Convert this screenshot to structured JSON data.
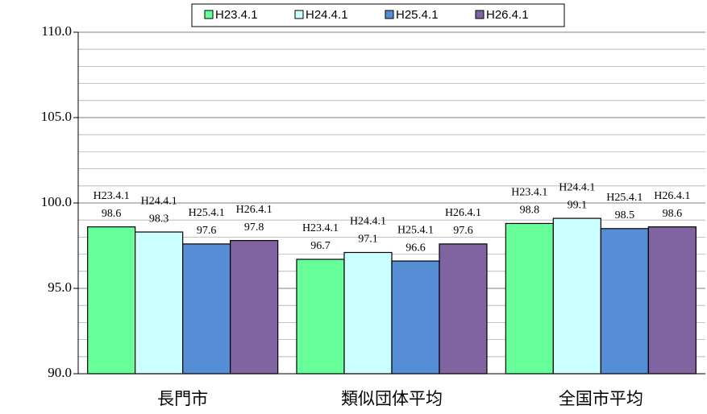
{
  "chart_data": {
    "type": "bar",
    "categories": [
      "長門市",
      "類似団体平均",
      "全国市平均"
    ],
    "series": [
      {
        "name": "H23.4.1",
        "color": "#66ff99",
        "values": [
          98.6,
          96.7,
          98.8
        ]
      },
      {
        "name": "H24.4.1",
        "color": "#ccffff",
        "values": [
          98.3,
          97.1,
          99.1
        ]
      },
      {
        "name": "H25.4.1",
        "color": "#558ed5",
        "values": [
          97.6,
          96.6,
          98.5
        ]
      },
      {
        "name": "H26.4.1",
        "color": "#8064a2",
        "values": [
          97.8,
          97.6,
          98.6
        ]
      }
    ],
    "ylim": [
      90,
      110
    ],
    "yticks": [
      {
        "value": 90,
        "label": "90.0"
      },
      {
        "value": 95,
        "label": "95.0"
      },
      {
        "value": 100,
        "label": "100.0"
      },
      {
        "value": 105,
        "label": "105.0"
      },
      {
        "value": 110,
        "label": "110.0"
      }
    ],
    "minor_yticks": [
      91,
      92,
      93,
      94,
      96,
      97,
      98,
      99,
      101,
      102,
      103,
      104,
      106,
      107,
      108,
      109
    ],
    "grid": true,
    "legend": "top"
  }
}
